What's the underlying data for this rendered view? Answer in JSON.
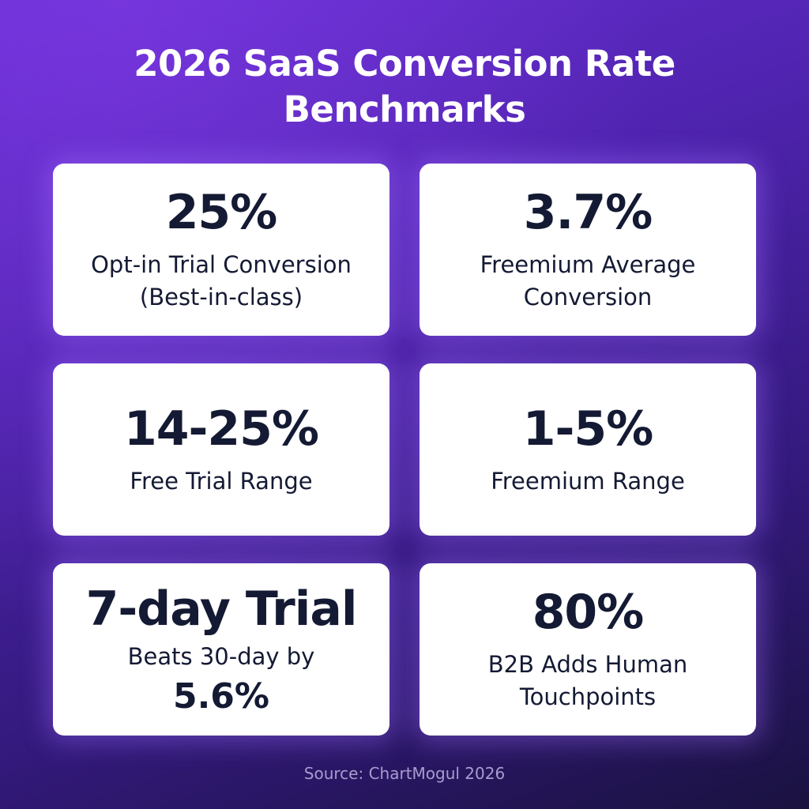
{
  "title": {
    "line1": "2026 SaaS Conversion Rate",
    "line2": "Benchmarks"
  },
  "cards": [
    {
      "value": "25%",
      "label_line1": "Opt-in Trial Conversion",
      "label_line2": "(Best-in-class)"
    },
    {
      "value": "3.7%",
      "label_line1": "Freemium Average",
      "label_line2": "Conversion"
    },
    {
      "value": "14-25%",
      "label_line1": "Free Trial Range"
    },
    {
      "value": "1-5%",
      "label_line1": "Freemium Range"
    },
    {
      "value": "7-day Trial",
      "label_line1": "Beats 30-day by",
      "label_emphasis": "5.6%"
    },
    {
      "value": "80%",
      "label_line1": "B2B Adds Human",
      "label_line2": "Touchpoints"
    }
  ],
  "source": "Source: ChartMogul 2026"
}
